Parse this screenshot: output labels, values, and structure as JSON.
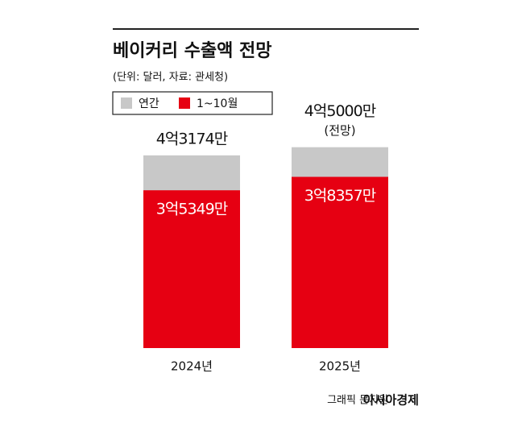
{
  "chart_data": {
    "type": "bar",
    "barmode": "overlay",
    "title": "베이커리 수출액 전망",
    "subtitle": "(단위: 달러, 자료: 관세청)",
    "categories": [
      "2024년",
      "2025년"
    ],
    "series": [
      {
        "name": "연간",
        "color": "#c8c8c8",
        "values": [
          431740000,
          450000000
        ],
        "value_labels": [
          "4억3174만",
          "4억5000만"
        ]
      },
      {
        "name": "1~10월",
        "color": "#e60012",
        "values": [
          353490000,
          383570000
        ],
        "value_labels": [
          "3억5349만",
          "3억8357만"
        ]
      }
    ],
    "annotations": [
      {
        "category": 1,
        "text": "(전망)"
      }
    ],
    "ylim": [
      0,
      500000000
    ],
    "credit": "그래픽 문지원",
    "brand": "아시아경제"
  }
}
